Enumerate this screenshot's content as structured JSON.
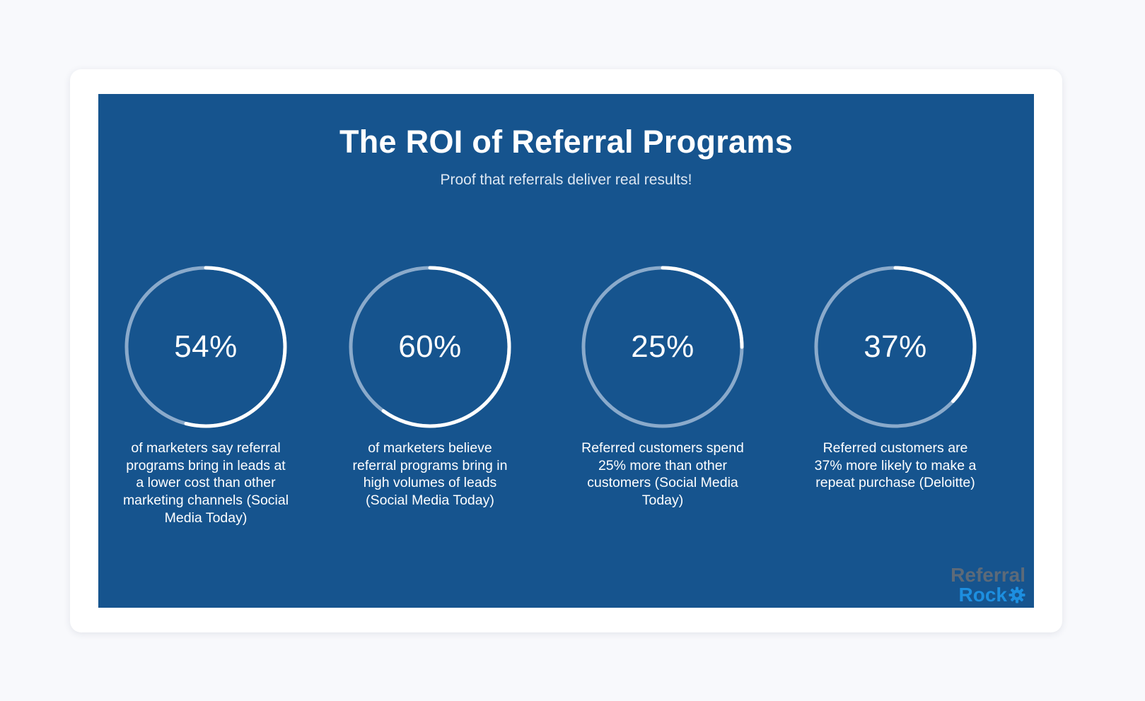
{
  "title": "The ROI of Referral Programs",
  "subtitle": "Proof that referrals deliver real results!",
  "stats": [
    {
      "value": "54%",
      "fraction": 0.54,
      "description": "of marketers say referral programs bring in leads at a lower cost than other marketing channels (Social Media Today)"
    },
    {
      "value": "60%",
      "fraction": 0.6,
      "description": "of marketers believe referral programs bring in high volumes of leads (Social Media Today)"
    },
    {
      "value": "25%",
      "fraction": 0.25,
      "description": "Referred customers spend 25% more than other customers (Social Media Today)"
    },
    {
      "value": "37%",
      "fraction": 0.37,
      "description": "Referred customers are 37% more likely to make a repeat purchase (Deloitte)"
    }
  ],
  "logo": {
    "line1": "Referral",
    "line2": "Rock",
    "icon": "gear-icon"
  },
  "colors": {
    "background": "#16548e",
    "ring_track": "#8aaacb",
    "ring_fill": "#ffffff",
    "logo_gray": "#5d6a78",
    "logo_blue": "#1d8fe0"
  }
}
